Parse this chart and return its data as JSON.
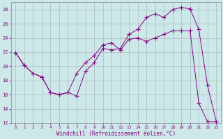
{
  "xlabel": "Windchill (Refroidissement éolien,°C)",
  "bg_color": "#cde8e8",
  "line_color": "#880088",
  "xlim": [
    -0.5,
    23.5
  ],
  "ylim": [
    12,
    29
  ],
  "xticks": [
    0,
    1,
    2,
    3,
    4,
    5,
    6,
    7,
    8,
    9,
    10,
    11,
    12,
    13,
    14,
    15,
    16,
    17,
    18,
    19,
    20,
    21,
    22,
    23
  ],
  "yticks": [
    12,
    14,
    16,
    18,
    20,
    22,
    24,
    26,
    28
  ],
  "grid_color": "#aabbbb",
  "line1_x": [
    0,
    1,
    2,
    3,
    4,
    5,
    6,
    7,
    8,
    9,
    10,
    11,
    12,
    13,
    14,
    15,
    16,
    17,
    18,
    19,
    20,
    21,
    22,
    23
  ],
  "line1_y": [
    21.9,
    20.1,
    19.0,
    18.5,
    16.3,
    16.0,
    16.3,
    15.8,
    19.3,
    20.5,
    22.5,
    22.3,
    22.5,
    24.5,
    25.2,
    26.9,
    27.4,
    26.9,
    28.0,
    28.3,
    28.1,
    25.2,
    17.3,
    12.2
  ],
  "line2_x": [
    0,
    1,
    2,
    3,
    4,
    5,
    6,
    7,
    8,
    9,
    10,
    11,
    12,
    13,
    14,
    15,
    16,
    17,
    18,
    19,
    20,
    21,
    22,
    23
  ],
  "line2_y": [
    21.9,
    20.1,
    19.0,
    18.5,
    16.3,
    16.0,
    16.3,
    19.0,
    20.5,
    21.5,
    23.0,
    23.3,
    22.3,
    23.8,
    24.0,
    23.5,
    24.0,
    24.5,
    25.0,
    25.0,
    25.0,
    14.8,
    12.2,
    12.2
  ]
}
